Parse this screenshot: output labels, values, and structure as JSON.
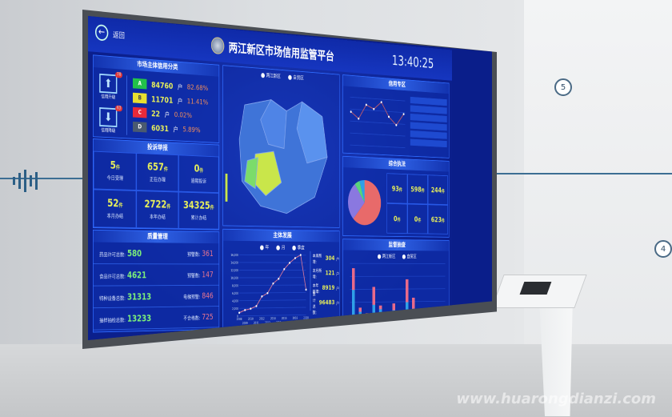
{
  "header": {
    "back_label": "返回",
    "title": "两江新区市场信用监管平台",
    "clock": "13:40:25"
  },
  "credit": {
    "title": "市场主体信用分类",
    "upgrade_label": "信用升级",
    "upgrade_badge": "78",
    "downgrade_label": "信用降级",
    "downgrade_badge": "63",
    "grades": [
      {
        "grade": "A",
        "count": "84760",
        "unit": "户",
        "pct": "82.68%",
        "color": "#22c24a"
      },
      {
        "grade": "B",
        "count": "11701",
        "unit": "户",
        "pct": "11.41%",
        "color": "#e8e030"
      },
      {
        "grade": "C",
        "count": "22",
        "unit": "户",
        "pct": "0.02%",
        "color": "#e82a3a"
      },
      {
        "grade": "D",
        "count": "6031",
        "unit": "户",
        "pct": "5.89%",
        "color": "#4a5a70"
      }
    ]
  },
  "complaints": {
    "title": "投诉举报",
    "unit": "件",
    "cells": [
      {
        "value": "5",
        "label": "今日受理"
      },
      {
        "value": "657",
        "label": "正在办理"
      },
      {
        "value": "0",
        "label": "逾期投诉"
      },
      {
        "value": "52",
        "label": "本月办结"
      },
      {
        "value": "2722",
        "label": "本年办结"
      },
      {
        "value": "34325",
        "label": "累计办结"
      }
    ]
  },
  "quality": {
    "title": "质量管理",
    "rows": [
      {
        "label": "药品许可总数:",
        "value": "580",
        "rlabel": "预警数:",
        "rvalue": "361"
      },
      {
        "label": "食品许可总数:",
        "value": "4621",
        "rlabel": "预警数:",
        "rvalue": "147"
      },
      {
        "label": "特种设备总数:",
        "value": "31313",
        "rlabel": "电梯预警:",
        "rvalue": "846"
      },
      {
        "label": "抽样抽检总数:",
        "value": "13233",
        "rlabel": "不合格数:",
        "rvalue": "725"
      }
    ]
  },
  "map": {
    "legend": [
      "两江新区",
      "自贸区"
    ],
    "colors": {
      "region": "#3f74d8",
      "highlight": "#c9e64a",
      "highlight2": "#7bdc6a"
    }
  },
  "development": {
    "title": "主体发展",
    "legend": [
      "年",
      "月",
      "季度"
    ],
    "stats": [
      {
        "label": "本周新增:",
        "value": "304",
        "unit": "户"
      },
      {
        "label": "本月新增:",
        "value": "121",
        "unit": "户"
      },
      {
        "label": "本年新增:",
        "value": "8919",
        "unit": "户"
      },
      {
        "label": "累计总数:",
        "value": "96483",
        "unit": "户"
      }
    ],
    "chart_data": {
      "type": "line",
      "x": [
        "2008",
        "2009",
        "2010",
        "2011",
        "2012",
        "2013",
        "2014",
        "2015",
        "2016",
        "2017",
        "2018",
        "2019",
        "2020"
      ],
      "values": [
        1000,
        1800,
        2200,
        3000,
        6000,
        7000,
        10000,
        11500,
        14500,
        16500,
        18000,
        19000,
        8000
      ],
      "ylim": [
        0,
        18000
      ],
      "yticks": [
        "0",
        "2,000",
        "4,000",
        "6,000",
        "8,000",
        "10,000",
        "12,000",
        "14,000",
        "16,000"
      ]
    }
  },
  "credit_zone": {
    "title": "信用专区",
    "chart_data": {
      "type": "line",
      "values": [
        60,
        48,
        75,
        68,
        82,
        55,
        40,
        62
      ]
    }
  },
  "enforcement": {
    "title": "综合执法",
    "unit": "件",
    "cells": [
      "93",
      "598",
      "244",
      "0",
      "0",
      "623"
    ],
    "chart_data": {
      "type": "pie",
      "values": [
        62,
        28,
        5,
        5
      ],
      "colors": [
        "#e86a6a",
        "#8a78e0",
        "#5ad47a",
        "#2fa0e8"
      ]
    }
  },
  "inspection": {
    "title": "监督抽查",
    "legend": [
      "两江新区",
      "自贸区"
    ],
    "chart_data": {
      "type": "bar",
      "series": [
        {
          "values": [
            50,
            8,
            2,
            30,
            10,
            2,
            12,
            4,
            38,
            18,
            4,
            2,
            2,
            4
          ]
        },
        {
          "values": [
            45,
            6,
            2,
            18,
            10,
            2,
            8,
            4,
            22,
            10,
            2,
            2,
            2,
            3
          ]
        }
      ],
      "colors": [
        "#e86a8a",
        "#2fa0e8"
      ]
    }
  },
  "room": {
    "wall_numbers": [
      "5",
      "4"
    ],
    "watermark": "www.huarongdianzi.com"
  }
}
